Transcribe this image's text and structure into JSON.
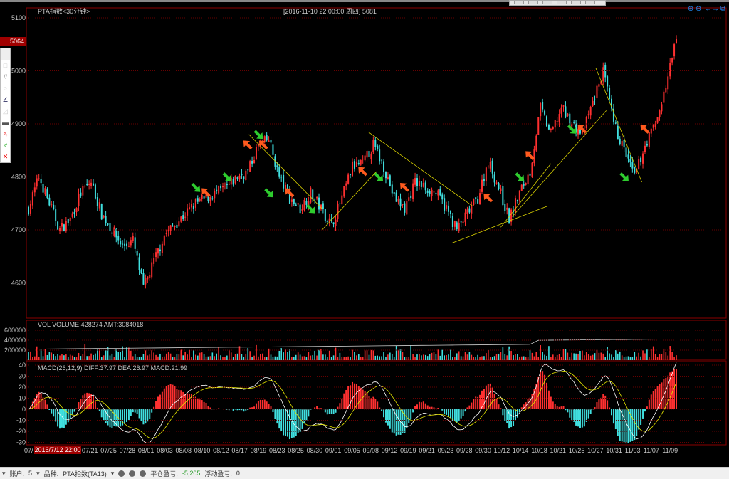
{
  "header": {
    "title": "PTA指数<30分钟>",
    "cursor_info": "[2016-11-10  22:00:00 周四]   5081",
    "current_price": "5064",
    "cursor_date": "2016/7/12 22:00"
  },
  "toolbar_icons": [
    "rectangle-icon",
    "parallel-lines-icon",
    "ellipse-icon",
    "angle-line-icon",
    "lock-angle-icon",
    "save-icon",
    "red-arrow-icon",
    "green-arrow-icon",
    "delete-icon"
  ],
  "top_right_icons": [
    "zoom-in-icon",
    "zoom-out-icon",
    "scroll-arrows-icon",
    "restore-window-icon"
  ],
  "status": {
    "account_label": "账户:",
    "account_value": "5",
    "symbol_label": "品种:",
    "symbol_value": "PTA指数(TA13)",
    "closed_pl_label": "平仓盈亏:",
    "closed_pl_value": "-5,205",
    "float_pl_label": "浮动盈亏:",
    "float_pl_value": "0"
  },
  "colors": {
    "up": "#ff3030",
    "down": "#40e0e0",
    "trend": "#d8d000",
    "frame": "#8b0000",
    "diff": "#ffffff",
    "dea": "#e8e800"
  },
  "chart_data": [
    {
      "type": "candlestick",
      "title": "PTA指数<30分钟>",
      "ylim": [
        4550,
        5100
      ],
      "yticks": [
        4600,
        4700,
        4800,
        4900,
        5000,
        5100
      ],
      "xticks": [
        "07/",
        "07/21",
        "07/25",
        "07/28",
        "08/01",
        "08/03",
        "08/08",
        "08/10",
        "08/12",
        "08/17",
        "08/19",
        "08/23",
        "08/25",
        "08/30",
        "09/01",
        "09/05",
        "09/08",
        "09/12",
        "09/19",
        "09/21",
        "09/23",
        "09/28",
        "09/30",
        "10/12",
        "10/14",
        "10/18",
        "10/21",
        "10/25",
        "10/27",
        "10/31",
        "11/03",
        "11/07",
        "11/09"
      ],
      "close_path": [
        4740,
        4800,
        4750,
        4700,
        4720,
        4770,
        4790,
        4730,
        4700,
        4670,
        4680,
        4590,
        4640,
        4690,
        4710,
        4730,
        4750,
        4760,
        4770,
        4780,
        4800,
        4810,
        4860,
        4870,
        4800,
        4760,
        4740,
        4770,
        4740,
        4710,
        4760,
        4820,
        4825,
        4860,
        4820,
        4760,
        4740,
        4790,
        4780,
        4770,
        4740,
        4700,
        4730,
        4760,
        4830,
        4780,
        4720,
        4770,
        4810,
        4930,
        4880,
        4930,
        4900,
        4880,
        4940,
        5000,
        4900,
        4850,
        4800,
        4860,
        4900,
        4970,
        5064
      ],
      "trendlines": [
        [
          21.1,
          4880,
          28.1,
          4740
        ],
        [
          28.1,
          4700,
          33.3,
          4810
        ],
        [
          32.5,
          4885,
          42.5,
          4745
        ],
        [
          40.5,
          4675,
          49.7,
          4745
        ],
        [
          45.2,
          4705,
          50,
          4825
        ],
        [
          46.3,
          4725,
          55.3,
          4925
        ],
        [
          54.3,
          5005,
          58.7,
          4790
        ]
      ],
      "arrows": [
        [
          16,
          4780,
          "down"
        ],
        [
          17,
          4770,
          "up"
        ],
        [
          19,
          4800,
          "down"
        ],
        [
          21,
          4860,
          "up"
        ],
        [
          22,
          4880,
          "down"
        ],
        [
          22.5,
          4860,
          "up"
        ],
        [
          23,
          4770,
          "down"
        ],
        [
          25,
          4770,
          "up"
        ],
        [
          27,
          4740,
          "down"
        ],
        [
          32,
          4810,
          "up"
        ],
        [
          33.5,
          4800,
          "down"
        ],
        [
          36,
          4780,
          "up"
        ],
        [
          44,
          4760,
          "up"
        ],
        [
          47,
          4800,
          "down"
        ],
        [
          48,
          4840,
          "up"
        ],
        [
          52,
          4890,
          "down"
        ],
        [
          53,
          4890,
          "up"
        ],
        [
          57,
          4800,
          "down"
        ],
        [
          59,
          4890,
          "up"
        ]
      ]
    },
    {
      "type": "bar",
      "title": "VOL  VOLUME:428274 AMT:3084018",
      "ylim": [
        0,
        700000
      ],
      "yticks": [
        200000,
        400000,
        600000
      ]
    },
    {
      "type": "bar+line",
      "title": "MACD(26,12,9)  DIFF:37.97 DEA:26.97 MACD:21.99",
      "ylim": [
        -30,
        40
      ],
      "yticks": [
        -30,
        -20,
        -10,
        0,
        10,
        20,
        30,
        40
      ]
    }
  ]
}
